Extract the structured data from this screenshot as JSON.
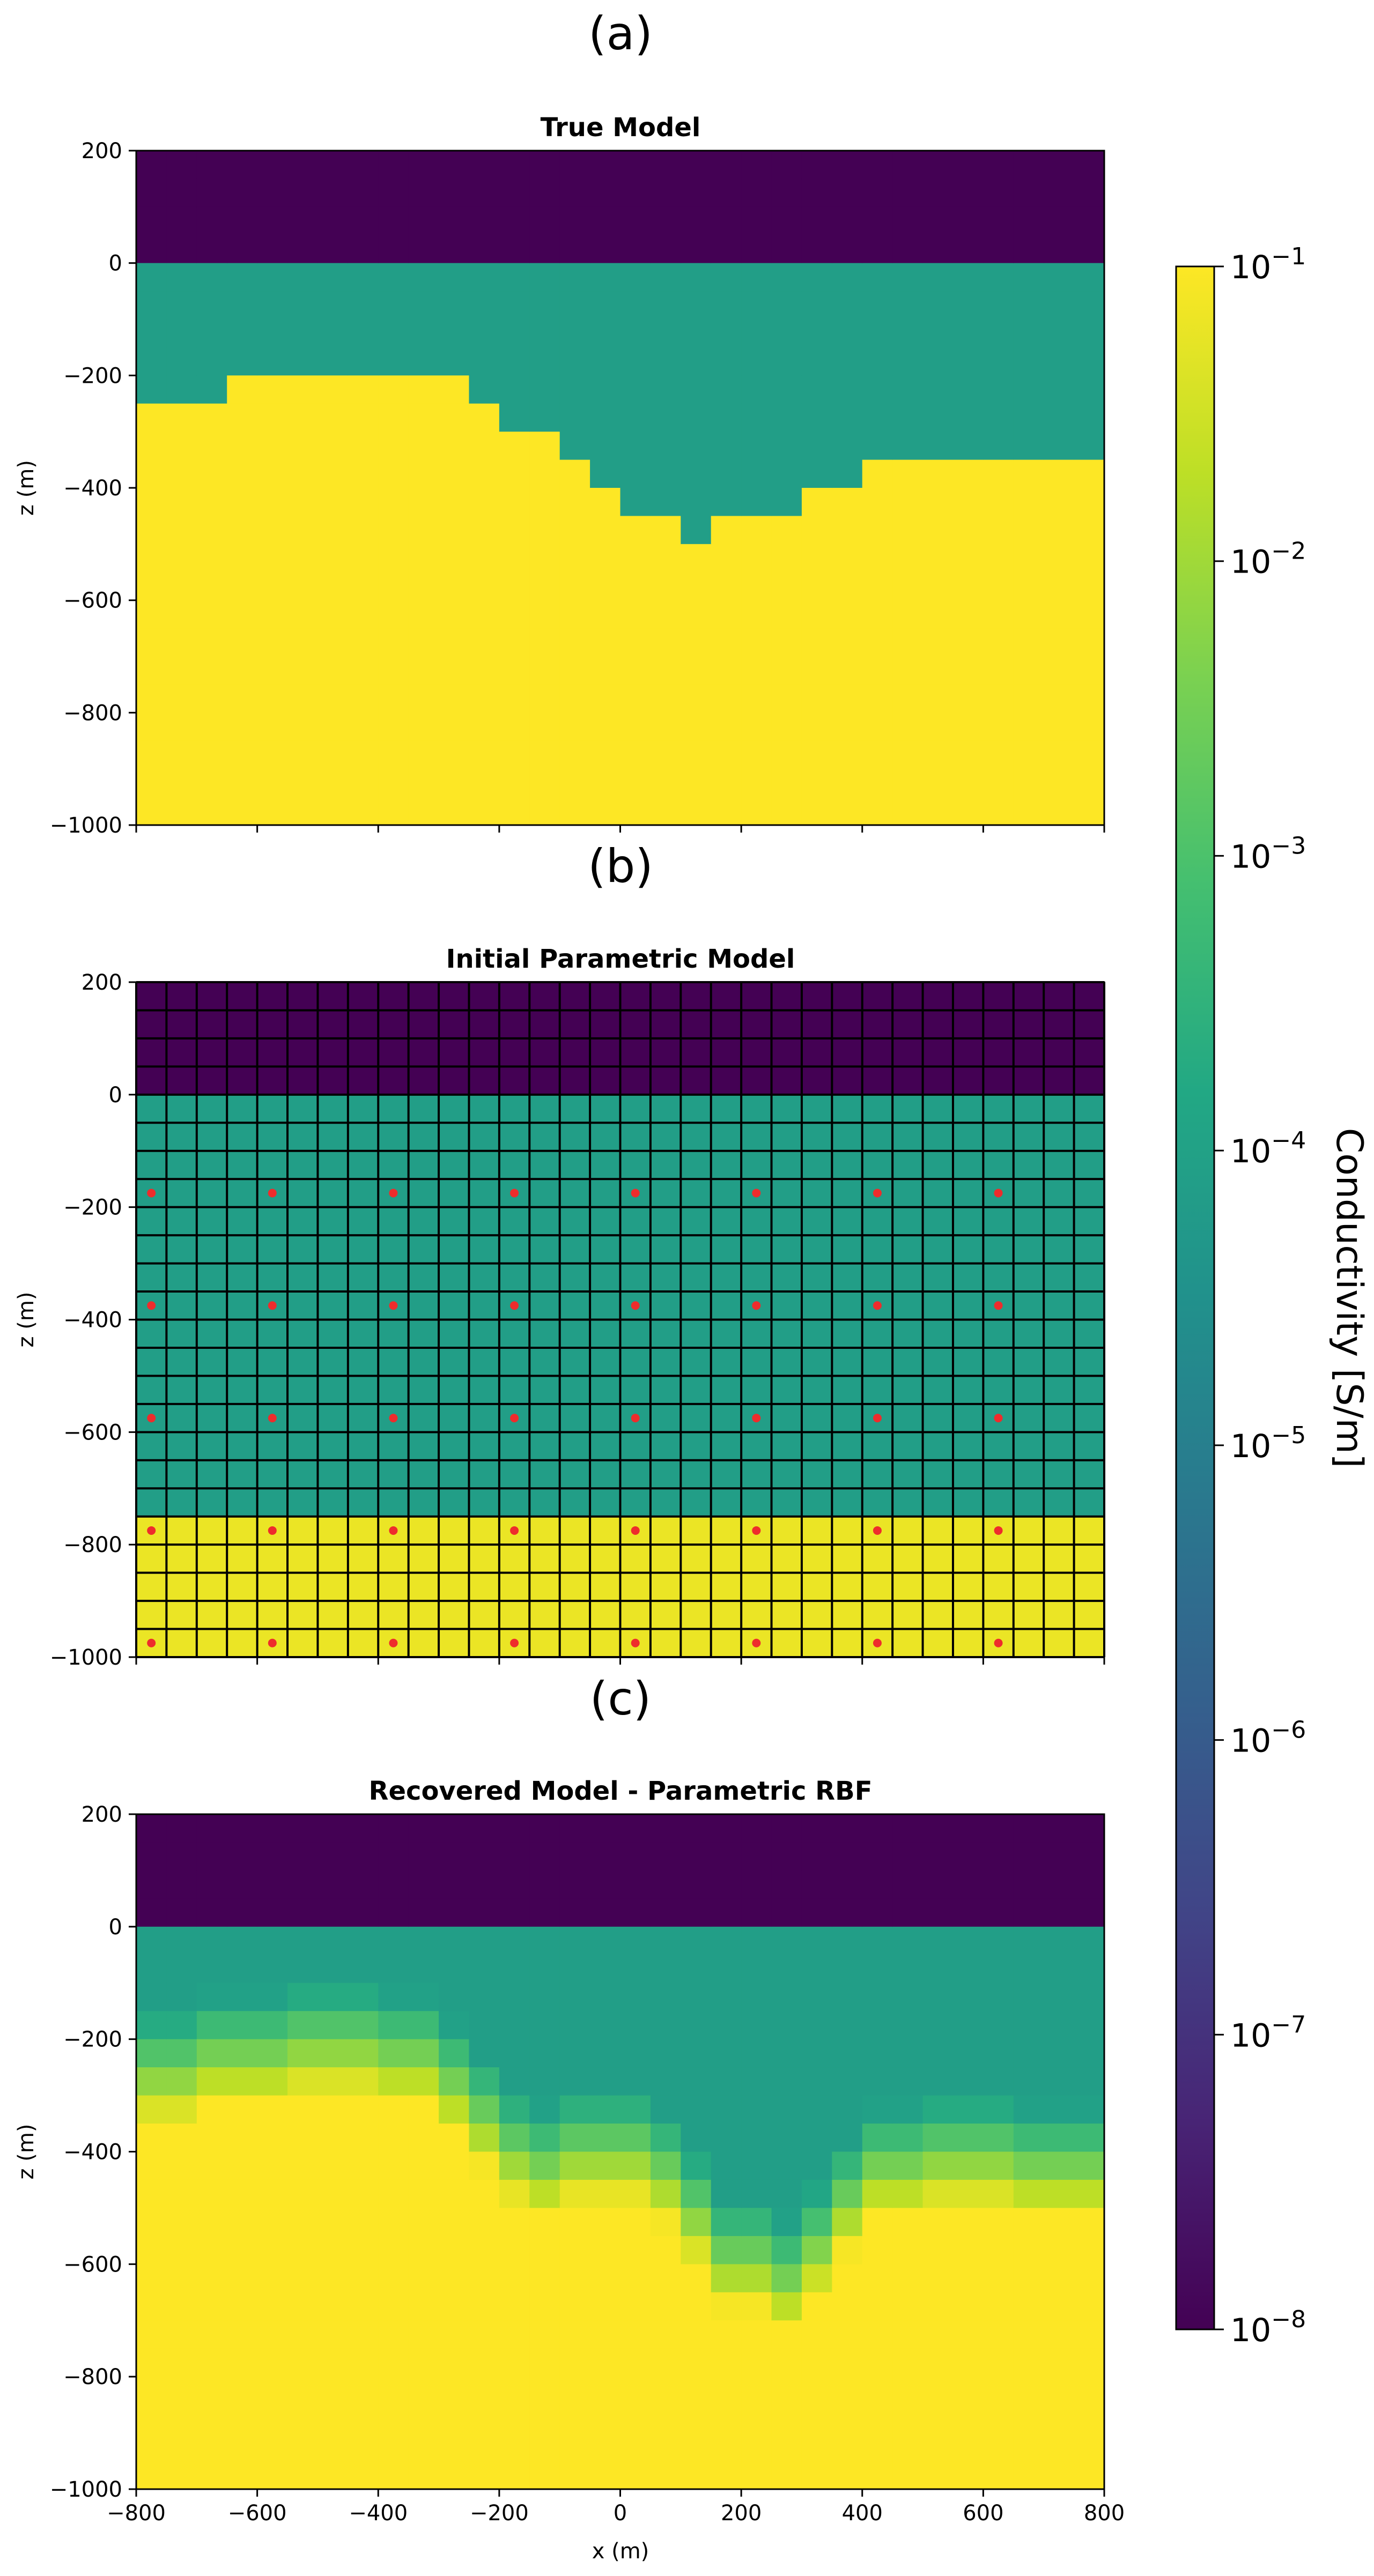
{
  "chart_data": [
    {
      "type": "heatmap",
      "panel_label": "(a)",
      "title": "True Model",
      "xlabel": "",
      "ylabel": "z (m)",
      "xlim": [
        -800,
        800
      ],
      "ylim": [
        -1000,
        200
      ],
      "x_ticks": [
        -800,
        -600,
        -400,
        -200,
        0,
        200,
        400,
        600,
        800
      ],
      "x_tick_labels_shown": false,
      "y_ticks": [
        200,
        0,
        -200,
        -400,
        -600,
        -800,
        -1000
      ],
      "y_tick_labels": [
        "200",
        "0",
        "−200",
        "−400",
        "−600",
        "−800",
        "−1000"
      ],
      "layers": {
        "air": {
          "z_top": 200,
          "z_bottom": 0,
          "log10_sigma": -8
        },
        "middle": {
          "z_top": 0,
          "log10_sigma": -4.1
        },
        "bottom": {
          "log10_sigma": -1
        }
      },
      "interface": {
        "x_edges": [
          -800,
          -650,
          -250,
          -200,
          -100,
          -50,
          0,
          100,
          150,
          300,
          400,
          450,
          800
        ],
        "z_depth": [
          -250,
          -200,
          -250,
          -300,
          -350,
          -400,
          -450,
          -500,
          -450,
          -400,
          -350,
          -350
        ]
      }
    },
    {
      "type": "heatmap",
      "panel_label": "(b)",
      "title": "Initial Parametric Model",
      "xlabel": "",
      "ylabel": "z (m)",
      "xlim": [
        -800,
        800
      ],
      "ylim": [
        -1000,
        200
      ],
      "x_ticks": [
        -800,
        -600,
        -400,
        -200,
        0,
        200,
        400,
        600,
        800
      ],
      "x_tick_labels_shown": false,
      "y_ticks": [
        200,
        0,
        -200,
        -400,
        -600,
        -800,
        -1000
      ],
      "y_tick_labels": [
        "200",
        "0",
        "−200",
        "−400",
        "−600",
        "−800",
        "−1000"
      ],
      "grid": true,
      "cell_size": [
        50,
        50
      ],
      "layers": {
        "air": {
          "z_top": 200,
          "z_bottom": 0,
          "log10_sigma": -8
        },
        "middle": {
          "z_top": 0,
          "z_bottom": -750,
          "log10_sigma": -4.1
        },
        "bottom": {
          "z_top": -750,
          "z_bottom": -1000,
          "log10_sigma": -1.2
        }
      },
      "rbf_centers": {
        "x": [
          -775,
          -575,
          -375,
          -175,
          25,
          225,
          425,
          625
        ],
        "z": [
          -175,
          -375,
          -575,
          -775,
          -975
        ]
      }
    },
    {
      "type": "heatmap",
      "panel_label": "(c)",
      "title": "Recovered Model - Parametric RBF",
      "xlabel": "x (m)",
      "ylabel": "z (m)",
      "xlim": [
        -800,
        800
      ],
      "ylim": [
        -1000,
        200
      ],
      "x_ticks": [
        -800,
        -600,
        -400,
        -200,
        0,
        200,
        400,
        600,
        800
      ],
      "x_tick_labels": [
        "−800",
        "−600",
        "−400",
        "−200",
        "0",
        "200",
        "400",
        "600",
        "800"
      ],
      "y_ticks": [
        200,
        0,
        -200,
        -400,
        -600,
        -800,
        -1000
      ],
      "y_tick_labels": [
        "200",
        "0",
        "−200",
        "−400",
        "−600",
        "−800",
        "−1000"
      ],
      "cell_size": [
        50,
        50
      ],
      "layers": {
        "air": {
          "z_top": 200,
          "z_bottom": 0,
          "log10_sigma": -8
        },
        "middle": {
          "z_top": 0,
          "log10_sigma": -4.1
        },
        "bottom": {
          "log10_sigma": -1
        }
      },
      "interface": {
        "x_edges": [
          -800,
          -700,
          -550,
          -400,
          -300,
          -250,
          -200,
          -150,
          -100,
          50,
          100,
          150,
          250,
          300,
          350,
          400,
          500,
          650,
          800
        ],
        "z_depth": [
          -250,
          -220,
          -200,
          -220,
          -270,
          -330,
          -390,
          -420,
          -390,
          -430,
          -500,
          -580,
          -620,
          -560,
          -480,
          -420,
          -400,
          -420
        ]
      },
      "transition_width_cells": 4
    },
    {
      "type": "colorbar",
      "label": "Conductivity [S/m]",
      "scale": "log",
      "colormap": "viridis",
      "range": [
        1e-08,
        0.1
      ],
      "ticks": [
        {
          "exponent": "−1",
          "value": 0.1
        },
        {
          "exponent": "−2",
          "value": 0.01
        },
        {
          "exponent": "−3",
          "value": 0.001
        },
        {
          "exponent": "−4",
          "value": 0.0001
        },
        {
          "exponent": "−5",
          "value": 1e-05
        },
        {
          "exponent": "−6",
          "value": 1e-06
        },
        {
          "exponent": "−7",
          "value": 1e-07
        },
        {
          "exponent": "−8",
          "value": 1e-08
        }
      ],
      "tick_base": "10"
    }
  ]
}
